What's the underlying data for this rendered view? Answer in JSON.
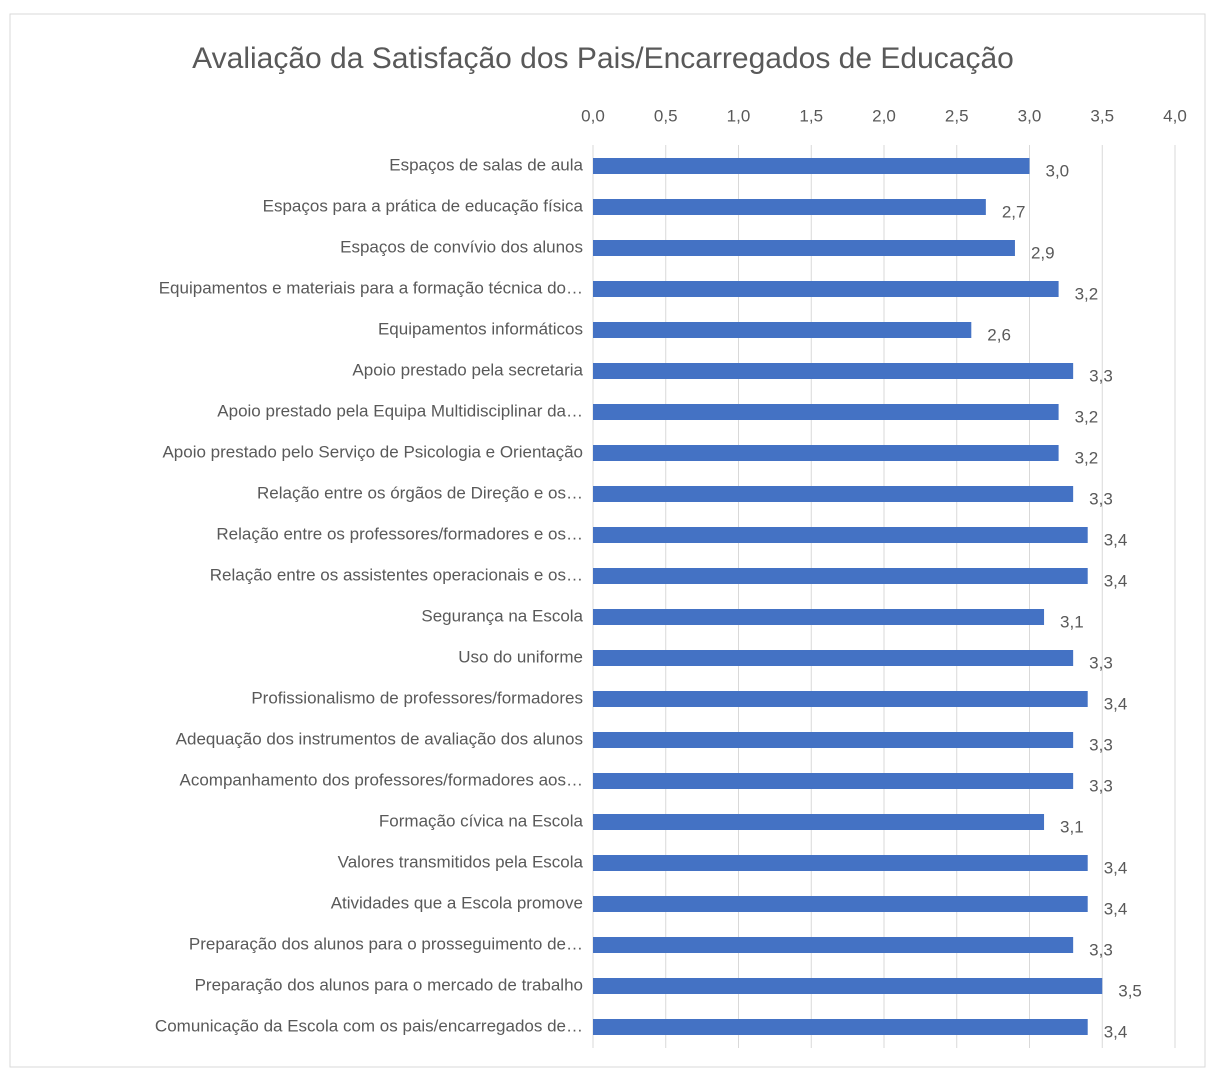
{
  "chart_data": {
    "type": "bar",
    "title": "Avaliação da Satisfação dos Pais/Encarregados de Educação",
    "categories": [
      "Espaços de salas de aula",
      "Espaços para a prática de educação física",
      "Espaços de convívio dos alunos",
      "Equipamentos e materiais para a formação técnica do…",
      "Equipamentos informáticos",
      "Apoio prestado pela secretaria",
      "Apoio prestado pela Equipa Multidisciplinar da…",
      "Apoio prestado pelo Serviço de Psicologia e Orientação",
      "Relação entre os órgãos de Direção e os…",
      "Relação entre os professores/formadores e os…",
      "Relação entre os assistentes operacionais e os…",
      "Segurança na Escola",
      "Uso do uniforme",
      "Profissionalismo de professores/formadores",
      "Adequação dos instrumentos de avaliação dos alunos",
      "Acompanhamento dos professores/formadores aos…",
      "Formação cívica na Escola",
      "Valores transmitidos pela Escola",
      "Atividades que a Escola promove",
      "Preparação dos alunos para o prosseguimento de…",
      "Preparação dos alunos para o mercado de trabalho",
      "Comunicação da Escola com os pais/encarregados de…"
    ],
    "values": [
      3.0,
      2.7,
      2.9,
      3.2,
      2.6,
      3.3,
      3.2,
      3.2,
      3.3,
      3.4,
      3.4,
      3.1,
      3.3,
      3.4,
      3.3,
      3.3,
      3.1,
      3.4,
      3.4,
      3.3,
      3.5,
      3.4
    ],
    "value_labels": [
      "3,0",
      "2,7",
      "2,9",
      "3,2",
      "2,6",
      "3,3",
      "3,2",
      "3,2",
      "3,3",
      "3,4",
      "3,4",
      "3,1",
      "3,3",
      "3,4",
      "3,3",
      "3,3",
      "3,1",
      "3,4",
      "3,4",
      "3,3",
      "3,5",
      "3,4"
    ],
    "color": "#4472c4",
    "xlim": [
      0,
      4
    ],
    "xticks": [
      {
        "value": 0,
        "label": "0,0"
      },
      {
        "value": 0.5,
        "label": "0,5"
      },
      {
        "value": 1,
        "label": "1,0"
      },
      {
        "value": 1.5,
        "label": "1,5"
      },
      {
        "value": 2,
        "label": "2,0"
      },
      {
        "value": 2.5,
        "label": "2,5"
      },
      {
        "value": 3,
        "label": "3,0"
      },
      {
        "value": 3.5,
        "label": "3,5"
      },
      {
        "value": 4,
        "label": "4,0"
      }
    ],
    "grid": true
  }
}
